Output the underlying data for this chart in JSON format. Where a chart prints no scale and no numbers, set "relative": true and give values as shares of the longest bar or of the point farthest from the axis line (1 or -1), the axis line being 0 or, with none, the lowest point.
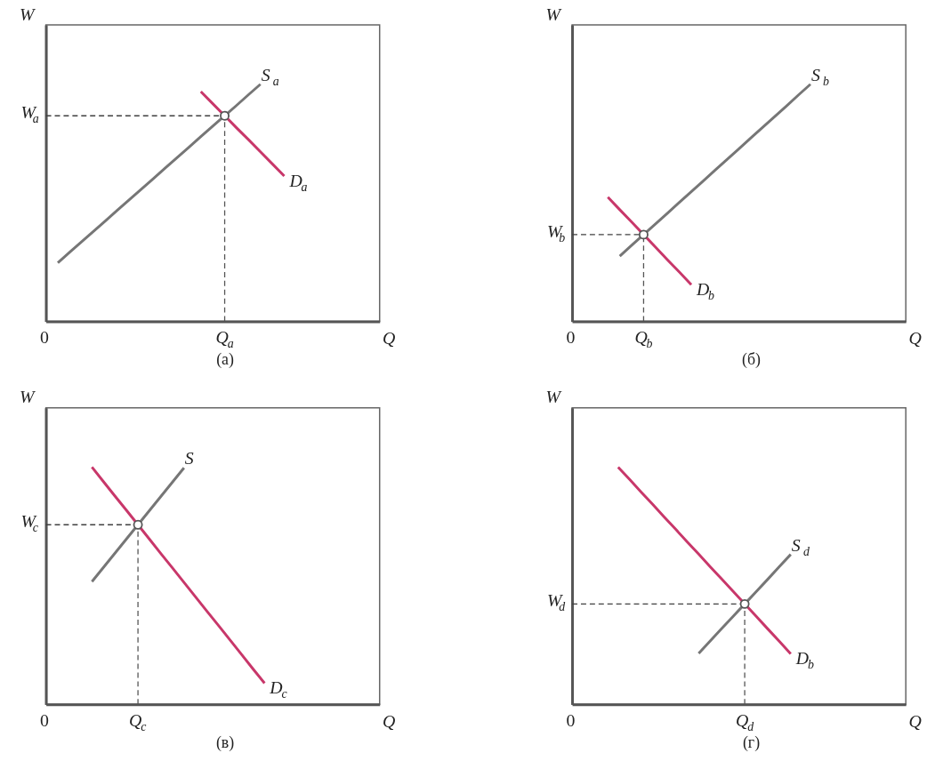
{
  "chart_data": [
    {
      "type": "line",
      "title": "(а)",
      "xlabel": "Q",
      "ylabel": "W",
      "relative": true,
      "categories": [
        "0",
        null,
        null,
        null,
        null,
        null,
        null,
        null,
        null,
        null,
        null,
        null,
        null,
        null,
        null,
        "Q$_{a}$",
        null,
        null,
        null,
        null,
        null,
        null,
        null,
        null,
        null,
        null,
        null,
        null,
        null
      ],
      "series": [
        {
          "name": "S$_{a}$",
          "color": "#767676",
          "values": [
            null,
            0.247,
            0.292,
            0.336,
            0.38,
            0.424,
            0.469,
            0.513,
            0.557,
            0.601,
            0.646,
            0.69,
            0.734,
            0.779,
            0.823,
            0.867,
            0.911,
            0.956,
            1.0,
            null,
            null,
            null,
            null,
            null,
            null,
            null,
            null,
            null,
            null
          ]
        },
        {
          "name": "D$_{a}$",
          "color": "#c8376a",
          "values": [
            null,
            null,
            null,
            null,
            null,
            null,
            null,
            null,
            null,
            null,
            null,
            null,
            null,
            0.969,
            0.918,
            0.867,
            0.816,
            0.766,
            0.715,
            0.664,
            0.613,
            null,
            null,
            null,
            null,
            null,
            null,
            null,
            null
          ]
        },
        {
          "type": "lollipop",
          "marker": "circle",
          "line_style": "dashed",
          "color": "#555555",
          "values": [
            null,
            null,
            null,
            null,
            null,
            null,
            null,
            null,
            null,
            null,
            null,
            null,
            null,
            null,
            null,
            0.867,
            null,
            null,
            null,
            null,
            null,
            null,
            null,
            null,
            null,
            null,
            null,
            null,
            null
          ]
        }
      ],
      "ref_lines": [
        {
          "axis": "y",
          "value": 0.867,
          "label": "W$_{a}$",
          "color": "#404040",
          "line_style": "dashed"
        }
      ]
    },
    {
      "type": "line",
      "title": "(б)",
      "xlabel": "Q",
      "ylabel": "W",
      "relative": true,
      "categories": [
        "0",
        null,
        null,
        null,
        null,
        null,
        "Q$_{b}$",
        null,
        null,
        null,
        null,
        null,
        null,
        null,
        null,
        null,
        null,
        null,
        null,
        null,
        null,
        null,
        null,
        null,
        null,
        null,
        null,
        null,
        null
      ],
      "series": [
        {
          "name": "S$_{b}$",
          "color": "#767676",
          "values": [
            null,
            null,
            null,
            null,
            0.275,
            0.321,
            0.366,
            0.411,
            0.456,
            0.502,
            0.547,
            0.592,
            0.638,
            0.683,
            0.728,
            0.774,
            0.819,
            0.864,
            0.909,
            0.955,
            1.0,
            null,
            null,
            null,
            null,
            null,
            null,
            null,
            null
          ]
        },
        {
          "name": "D$_{b}$",
          "color": "#c8376a",
          "values": [
            null,
            null,
            null,
            0.524,
            0.471,
            0.419,
            0.366,
            0.313,
            0.26,
            0.208,
            0.155,
            null,
            null,
            null,
            null,
            null,
            null,
            null,
            null,
            null,
            null,
            null,
            null,
            null,
            null,
            null,
            null,
            null,
            null
          ]
        },
        {
          "type": "lollipop",
          "marker": "circle",
          "line_style": "dashed",
          "color": "#555555",
          "values": [
            null,
            null,
            null,
            null,
            null,
            null,
            0.366,
            null,
            null,
            null,
            null,
            null,
            null,
            null,
            null,
            null,
            null,
            null,
            null,
            null,
            null,
            null,
            null,
            null,
            null,
            null,
            null,
            null,
            null
          ]
        }
      ],
      "ref_lines": [
        {
          "axis": "y",
          "value": 0.366,
          "label": "W$_{b}$",
          "color": "#404040",
          "line_style": "dashed"
        }
      ]
    },
    {
      "type": "line",
      "title": "(в)",
      "xlabel": "Q",
      "ylabel": "W",
      "relative": true,
      "categories": [
        "0",
        null,
        null,
        null,
        null,
        null,
        null,
        null,
        "Q$_{c}$",
        null,
        null,
        null,
        null,
        null,
        null,
        null,
        null,
        null,
        null,
        null,
        null,
        null,
        null,
        null,
        null,
        null,
        null,
        null,
        null,
        null
      ],
      "series": [
        {
          "name": "S",
          "color": "#767676",
          "values": [
            null,
            null,
            null,
            null,
            0.517,
            0.577,
            0.637,
            0.697,
            0.757,
            0.817,
            0.877,
            0.937,
            0.997,
            null,
            null,
            null,
            null,
            null,
            null,
            null,
            null,
            null,
            null,
            null,
            null,
            null,
            null,
            null,
            null,
            null
          ]
        },
        {
          "name": "D$_{c}$",
          "color": "#c8376a",
          "values": [
            null,
            null,
            null,
            null,
            1.0,
            0.939,
            0.878,
            0.818,
            0.757,
            0.696,
            0.635,
            0.575,
            0.514,
            0.453,
            0.392,
            0.332,
            0.271,
            0.21,
            0.149,
            0.089,
            null,
            null,
            null,
            null,
            null,
            null,
            null,
            null,
            null,
            null
          ]
        },
        {
          "type": "lollipop",
          "marker": "circle",
          "line_style": "dashed",
          "color": "#555555",
          "values": [
            null,
            null,
            null,
            null,
            null,
            null,
            null,
            null,
            0.757,
            null,
            null,
            null,
            null,
            null,
            null,
            null,
            null,
            null,
            null,
            null,
            null,
            null,
            null,
            null,
            null,
            null,
            null,
            null,
            null,
            null
          ]
        }
      ],
      "ref_lines": [
        {
          "axis": "y",
          "value": 0.757,
          "label": "W$_{c}$",
          "color": "#404040",
          "line_style": "dashed"
        }
      ]
    },
    {
      "type": "line",
      "title": "(г)",
      "xlabel": "Q",
      "ylabel": "W",
      "relative": true,
      "categories": [
        "0",
        null,
        null,
        null,
        null,
        null,
        null,
        null,
        null,
        null,
        null,
        null,
        null,
        null,
        null,
        "Q$_{d}$",
        null,
        null,
        null,
        null,
        null,
        null,
        null,
        null,
        null,
        null,
        null,
        null,
        null,
        null
      ],
      "series": [
        {
          "name": "S$_{d}$",
          "color": "#767676",
          "values": [
            null,
            null,
            null,
            null,
            null,
            null,
            null,
            null,
            null,
            null,
            null,
            0.214,
            0.267,
            0.319,
            0.371,
            0.423,
            0.475,
            0.527,
            0.58,
            0.632,
            null,
            null,
            null,
            null,
            null,
            null,
            null,
            null,
            null,
            null
          ]
        },
        {
          "name": "D$_{b}$",
          "color": "#c8376a",
          "values": [
            null,
            null,
            null,
            null,
            1.0,
            0.948,
            0.895,
            0.843,
            0.79,
            0.738,
            0.685,
            0.633,
            0.58,
            0.528,
            0.476,
            0.423,
            0.371,
            0.318,
            0.266,
            0.213,
            null,
            null,
            null,
            null,
            null,
            null,
            null,
            null,
            null,
            null
          ]
        },
        {
          "type": "lollipop",
          "marker": "circle",
          "line_style": "dashed",
          "color": "#555555",
          "values": [
            null,
            null,
            null,
            null,
            null,
            null,
            null,
            null,
            null,
            null,
            null,
            null,
            null,
            null,
            null,
            0.423,
            null,
            null,
            null,
            null,
            null,
            null,
            null,
            null,
            null,
            null,
            null,
            null,
            null,
            null
          ]
        }
      ],
      "ref_lines": [
        {
          "axis": "y",
          "value": 0.423,
          "label": "W$_{d}$",
          "color": "#404040",
          "line_style": "dashed"
        }
      ]
    }
  ]
}
